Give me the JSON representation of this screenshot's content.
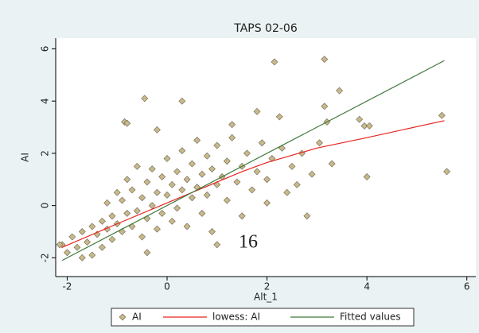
{
  "chart_data": {
    "type": "scatter",
    "title": "TAPS 02-06",
    "x_label": "Alt_1",
    "y_label": "AI",
    "annotation": "16",
    "xlim": [
      -2.23,
      6.18
    ],
    "ylim": [
      -2.72,
      6.41
    ],
    "xticks": [
      -2,
      0,
      2,
      4,
      6
    ],
    "yticks": [
      -2,
      0,
      2,
      4,
      6
    ],
    "grid": false,
    "series": [
      {
        "name": "AI",
        "type": "scatter",
        "color": "#c8b98a",
        "x": [
          -2.1,
          -2.0,
          -1.9,
          -1.8,
          -1.7,
          -1.6,
          -1.5,
          -1.5,
          -1.4,
          -1.3,
          -1.3,
          -1.2,
          -1.2,
          -1.1,
          -1.1,
          -1.0,
          -1.0,
          -0.9,
          -0.9,
          -0.8,
          -0.8,
          -0.7,
          -0.7,
          -0.6,
          -0.6,
          -0.5,
          -0.5,
          -0.4,
          -0.4,
          -0.3,
          -0.3,
          -0.2,
          -0.2,
          -0.1,
          -0.1,
          0.0,
          0.0,
          0.1,
          0.1,
          0.2,
          0.2,
          0.3,
          0.3,
          0.4,
          0.4,
          0.5,
          0.5,
          0.6,
          0.6,
          0.7,
          0.7,
          0.8,
          0.8,
          0.9,
          0.9,
          1.0,
          1.0,
          1.1,
          1.2,
          1.2,
          1.3,
          1.4,
          1.5,
          1.5,
          1.6,
          1.7,
          1.8,
          1.9,
          2.0,
          2.1,
          2.3,
          2.5,
          2.6,
          2.7,
          2.9,
          2.15,
          3.15,
          3.45,
          3.15,
          -0.45,
          0.3,
          -0.85,
          -0.8,
          1.3,
          1.8,
          2.25,
          3.2,
          3.85,
          3.95,
          4.05,
          5.5,
          5.6,
          4.0,
          3.3,
          3.05,
          2.8,
          1.0,
          -0.4,
          -1.7,
          -2.15,
          -0.2,
          2.0,
          2.4
        ],
        "values": [
          -1.5,
          -1.8,
          -1.2,
          -1.6,
          -1.0,
          -1.4,
          -0.8,
          -1.9,
          -1.1,
          -0.6,
          -1.6,
          -0.9,
          0.1,
          -1.3,
          -0.4,
          -0.7,
          0.5,
          -1.0,
          0.2,
          -0.3,
          1.0,
          -0.8,
          0.6,
          -0.2,
          1.5,
          0.3,
          -1.2,
          0.9,
          -0.5,
          0.0,
          1.4,
          0.5,
          -0.9,
          1.1,
          -0.3,
          0.4,
          1.8,
          -0.6,
          0.8,
          1.3,
          -0.1,
          0.6,
          2.1,
          1.0,
          -0.8,
          0.3,
          1.6,
          2.5,
          0.7,
          -0.3,
          1.2,
          1.9,
          0.4,
          1.4,
          -1.0,
          0.8,
          2.3,
          1.1,
          0.2,
          1.7,
          2.6,
          0.9,
          1.5,
          -0.4,
          2.0,
          0.6,
          1.3,
          2.4,
          1.0,
          1.8,
          2.2,
          1.5,
          0.8,
          2.0,
          1.2,
          5.5,
          5.6,
          4.4,
          3.8,
          4.1,
          4.0,
          3.2,
          3.15,
          3.1,
          3.6,
          3.4,
          3.2,
          3.3,
          3.05,
          3.05,
          3.45,
          1.3,
          1.1,
          1.6,
          2.4,
          -0.4,
          -1.5,
          -1.8,
          -2.0,
          -1.5,
          2.9,
          0.1,
          0.5
        ]
      },
      {
        "name": "lowess: AI",
        "type": "line",
        "color": "#e8231e",
        "x": [
          -2.1,
          -1.0,
          0.0,
          1.0,
          1.5,
          2.0,
          3.0,
          4.0,
          5.55
        ],
        "values": [
          -1.6,
          -0.7,
          0.1,
          0.9,
          1.3,
          1.65,
          2.2,
          2.6,
          3.25
        ]
      },
      {
        "name": "Fitted values",
        "type": "line",
        "color": "#3f7a3a",
        "x": [
          -2.1,
          5.55
        ],
        "values": [
          -2.1,
          5.55
        ]
      }
    ]
  }
}
